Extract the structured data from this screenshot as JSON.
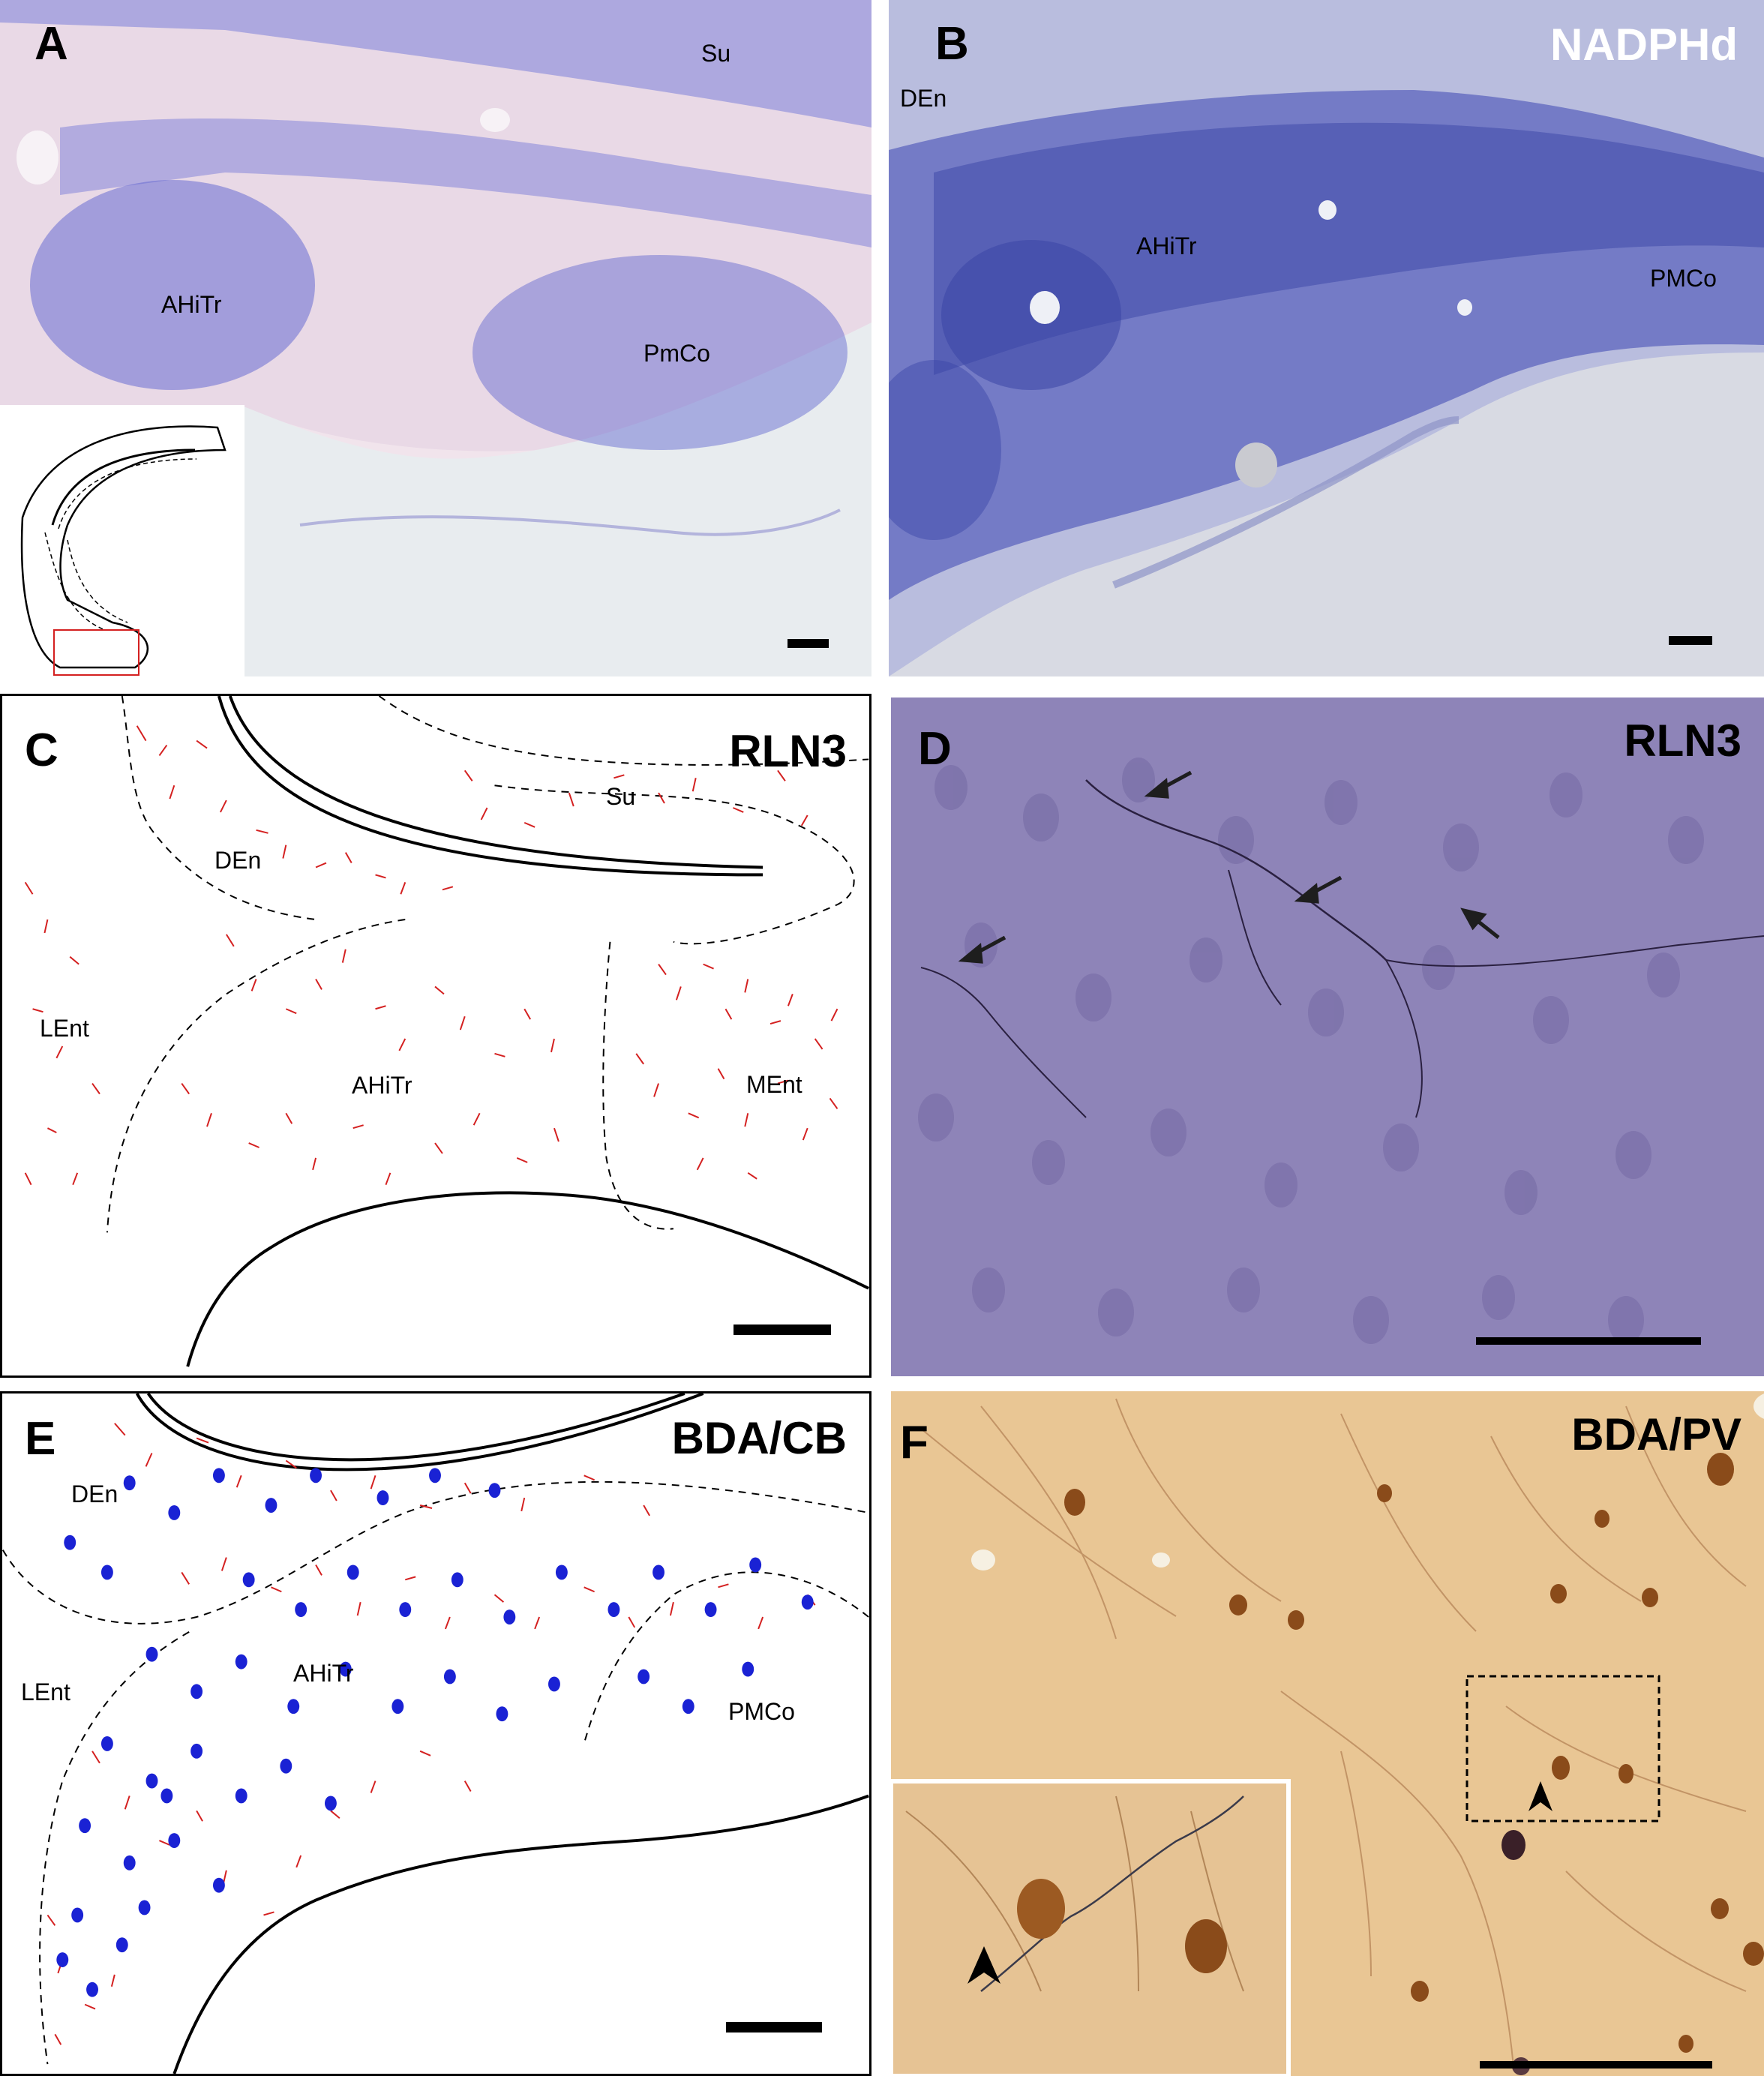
{
  "panels": {
    "A": {
      "letter": "A",
      "regions": {
        "su": "Su",
        "ahitr": "AHiTr",
        "pmco": "PmCo"
      },
      "stain_color": "#4a4fc4",
      "background_color": "#efe3ea"
    },
    "B": {
      "letter": "B",
      "title": "NADPHd",
      "regions": {
        "den": "DEn",
        "ahitr": "AHiTr",
        "pmco": "PMCo"
      },
      "stain_color": "#3a48a8",
      "background_color": "#d4d6de"
    },
    "C": {
      "letter": "C",
      "title": "RLN3",
      "regions": {
        "su": "Su",
        "den": "DEn",
        "lent": "LEnt",
        "ahitr": "AHiTr",
        "ment": "MEnt"
      },
      "fiber_color": "#d42020"
    },
    "D": {
      "letter": "D",
      "title": "RLN3",
      "background_color": "#8e84b8"
    },
    "E": {
      "letter": "E",
      "title": "BDA/CB",
      "regions": {
        "den": "DEn",
        "lent": "LEnt",
        "ahitr": "AHiTr",
        "pmco": "PMCo"
      },
      "fiber_color": "#d42020",
      "cell_color": "#1a22d4"
    },
    "F": {
      "letter": "F",
      "title": "BDA/PV",
      "background_color": "#e9c89a",
      "cell_color": "#8a4b1a"
    }
  }
}
